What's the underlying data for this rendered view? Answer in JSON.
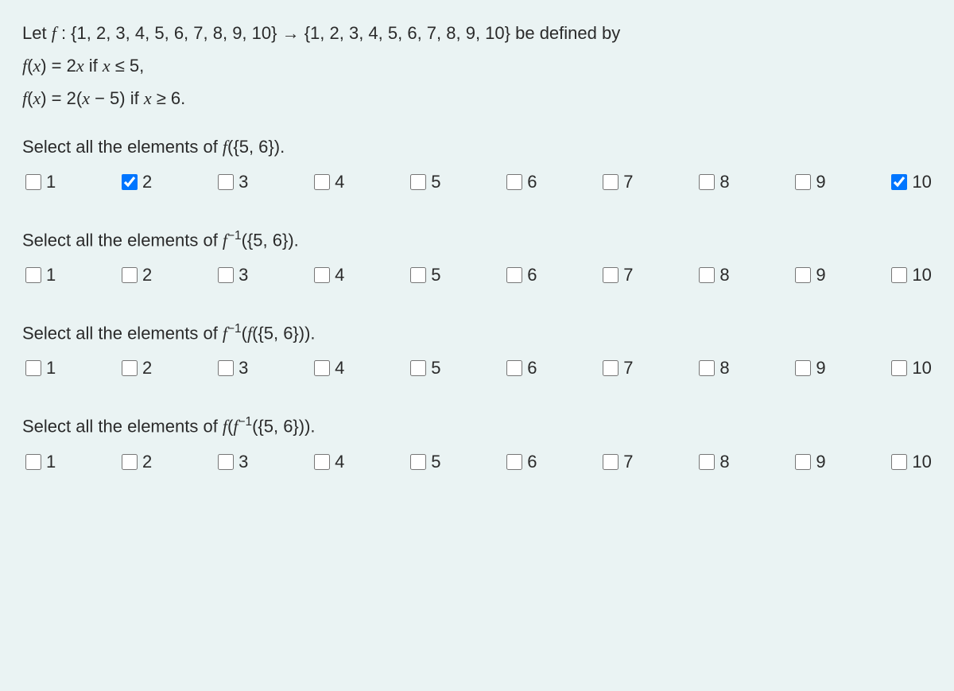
{
  "definition": {
    "line1_html": "Let <span class='math'>f</span> : {1, 2, 3, 4, 5, 6, 7, 8, 9, 10} &rarr; {1, 2, 3, 4, 5, 6, 7, 8, 9, 10} be defined by",
    "line2_html": "<span class='math'>f</span>(<span class='math'>x</span>) = 2<span class='math'>x</span> if <span class='math'>x</span> &#8804; 5,",
    "line3_html": "<span class='math'>f</span>(<span class='math'>x</span>) = 2(<span class='math'>x</span> &minus; 5) if <span class='math'>x</span> &#8805; 6."
  },
  "questions": [
    {
      "prompt_html": "Select all the elements of <span class='math'>f</span>({5, 6}).",
      "options": [
        {
          "label": "1",
          "checked": false
        },
        {
          "label": "2",
          "checked": true
        },
        {
          "label": "3",
          "checked": false
        },
        {
          "label": "4",
          "checked": false
        },
        {
          "label": "5",
          "checked": false
        },
        {
          "label": "6",
          "checked": false
        },
        {
          "label": "7",
          "checked": false
        },
        {
          "label": "8",
          "checked": false
        },
        {
          "label": "9",
          "checked": false
        },
        {
          "label": "10",
          "checked": true
        }
      ]
    },
    {
      "prompt_html": "Select all the elements of <span class='math'>f</span><sup>&minus;1</sup>({5, 6}).",
      "options": [
        {
          "label": "1",
          "checked": false
        },
        {
          "label": "2",
          "checked": false
        },
        {
          "label": "3",
          "checked": false
        },
        {
          "label": "4",
          "checked": false
        },
        {
          "label": "5",
          "checked": false
        },
        {
          "label": "6",
          "checked": false
        },
        {
          "label": "7",
          "checked": false
        },
        {
          "label": "8",
          "checked": false
        },
        {
          "label": "9",
          "checked": false
        },
        {
          "label": "10",
          "checked": false
        }
      ]
    },
    {
      "prompt_html": "Select all the elements of <span class='math'>f</span><sup>&minus;1</sup>(<span class='math'>f</span>({5, 6})).",
      "options": [
        {
          "label": "1",
          "checked": false
        },
        {
          "label": "2",
          "checked": false
        },
        {
          "label": "3",
          "checked": false
        },
        {
          "label": "4",
          "checked": false
        },
        {
          "label": "5",
          "checked": false
        },
        {
          "label": "6",
          "checked": false
        },
        {
          "label": "7",
          "checked": false
        },
        {
          "label": "8",
          "checked": false
        },
        {
          "label": "9",
          "checked": false
        },
        {
          "label": "10",
          "checked": false
        }
      ]
    },
    {
      "prompt_html": "Select all the elements of <span class='math'>f</span>(<span class='math'>f</span><sup>&minus;1</sup>({5, 6})).",
      "options": [
        {
          "label": "1",
          "checked": false
        },
        {
          "label": "2",
          "checked": false
        },
        {
          "label": "3",
          "checked": false
        },
        {
          "label": "4",
          "checked": false
        },
        {
          "label": "5",
          "checked": false
        },
        {
          "label": "6",
          "checked": false
        },
        {
          "label": "7",
          "checked": false
        },
        {
          "label": "8",
          "checked": false
        },
        {
          "label": "9",
          "checked": false
        },
        {
          "label": "10",
          "checked": false
        }
      ]
    }
  ]
}
